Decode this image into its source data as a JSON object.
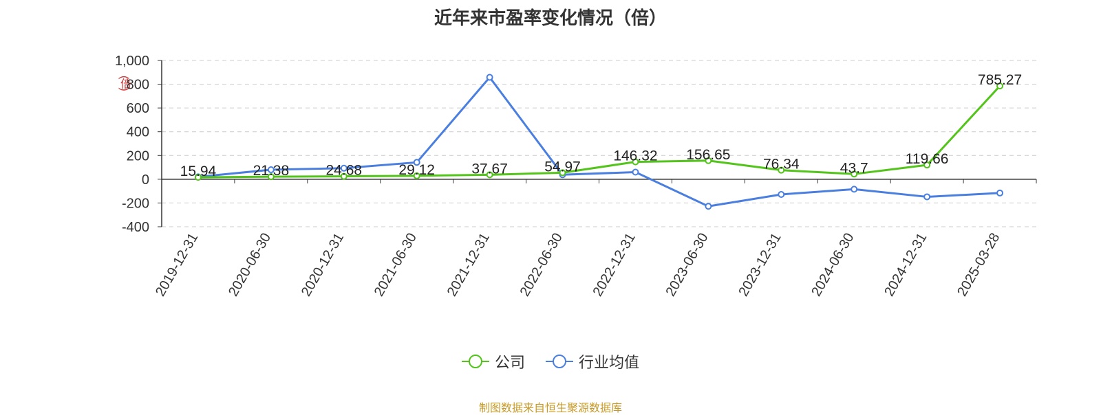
{
  "chart_data": {
    "type": "line",
    "title": "近年来市盈率变化情况（倍）",
    "ylabel": "(倍)",
    "categories": [
      "2019-12-31",
      "2020-06-30",
      "2020-12-31",
      "2021-06-30",
      "2021-12-31",
      "2022-06-30",
      "2022-12-31",
      "2023-06-30",
      "2023-12-31",
      "2024-06-30",
      "2024-12-31",
      "2025-03-28"
    ],
    "ylim": [
      -400,
      1000
    ],
    "yticks": [
      1000,
      800,
      600,
      400,
      200,
      0,
      -200,
      -400
    ],
    "ytick_labels": [
      "1,000",
      "800",
      "600",
      "400",
      "200",
      "0",
      "-200",
      "-400"
    ],
    "grid": true,
    "legend_position": "bottom",
    "series": [
      {
        "name": "公司",
        "color": "#52c41a",
        "values": [
          15.94,
          21.38,
          24.68,
          29.12,
          37.67,
          54.97,
          146.32,
          156.65,
          76.34,
          43.7,
          119.66,
          785.27
        ],
        "labels": [
          "15.94",
          "21.38",
          "24.68",
          "29.12",
          "37.67",
          "54.97",
          "146.32",
          "156.65",
          "76.34",
          "43.7",
          "119.66",
          "785.27"
        ]
      },
      {
        "name": "行业均值",
        "color": "#4a7fe0",
        "values": [
          20,
          80,
          93,
          142,
          858,
          38,
          60,
          -228,
          -128,
          -84,
          -148,
          -116
        ]
      }
    ]
  },
  "source": "制图数据来自恒生聚源数据库"
}
